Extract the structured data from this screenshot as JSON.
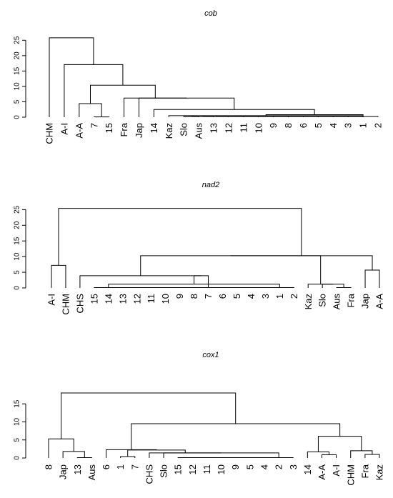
{
  "chart_data": [
    {
      "type": "dendrogram",
      "title": "cob",
      "ylim": [
        0,
        26
      ],
      "yticks": [
        0,
        5,
        10,
        15,
        20,
        25
      ],
      "leaves": [
        "CHM",
        "A-I",
        "A-A",
        "7",
        "15",
        "Fra",
        "Jap",
        "14",
        "Kaz",
        "Slo",
        "Aus",
        "13",
        "12",
        "11",
        "10",
        "9",
        "8",
        "6",
        "5",
        "4",
        "3",
        "1",
        "2"
      ],
      "merges": [
        {
          "id": "c1",
          "height": 0.2,
          "left": "Slo",
          "right": "Aus"
        },
        {
          "id": "c2",
          "height": 0.2,
          "left": "c1",
          "right": "13"
        },
        {
          "id": "c3",
          "height": 0.2,
          "left": "c2",
          "right": "12"
        },
        {
          "id": "c4",
          "height": 0.2,
          "left": "c3",
          "right": "11"
        },
        {
          "id": "c5",
          "height": 0.2,
          "left": "c4",
          "right": "10"
        },
        {
          "id": "c6",
          "height": 0.2,
          "left": "c5",
          "right": "9"
        },
        {
          "id": "c7",
          "height": 0.2,
          "left": "c6",
          "right": "8"
        },
        {
          "id": "c8",
          "height": 0.2,
          "left": "c7",
          "right": "6"
        },
        {
          "id": "c9",
          "height": 0.2,
          "left": "c8",
          "right": "5"
        },
        {
          "id": "c10",
          "height": 0.2,
          "left": "c9",
          "right": "4"
        },
        {
          "id": "c11",
          "height": 0.2,
          "left": "c10",
          "right": "3"
        },
        {
          "id": "c12",
          "height": 0.2,
          "left": "c11",
          "right": "1"
        },
        {
          "id": "c13",
          "height": 0.2,
          "left": "c12",
          "right": "2"
        },
        {
          "id": "c14",
          "height": 0.5,
          "left": "Kaz",
          "right": "c13"
        },
        {
          "id": "c15",
          "height": 0.8,
          "left": "c14",
          "right": "c13"
        },
        {
          "id": "c16",
          "height": 2.5,
          "left": "14",
          "right": "c15"
        },
        {
          "id": "c17",
          "height": 6.2,
          "left": "Jap",
          "right": "c16"
        },
        {
          "id": "c18",
          "height": 6.2,
          "left": "Fra",
          "right": "c17"
        },
        {
          "id": "c19",
          "height": 0.1,
          "left": "7",
          "right": "15"
        },
        {
          "id": "c20",
          "height": 4.4,
          "left": "A-A",
          "right": "c19"
        },
        {
          "id": "c21",
          "height": 10.4,
          "left": "c20",
          "right": "c18"
        },
        {
          "id": "c22",
          "height": 17.1,
          "left": "A-I",
          "right": "c21"
        },
        {
          "id": "c23",
          "height": 25.8,
          "left": "CHM",
          "right": "c22"
        }
      ]
    },
    {
      "type": "dendrogram",
      "title": "nad2",
      "ylim": [
        0,
        26
      ],
      "yticks": [
        0,
        5,
        10,
        15,
        20,
        25
      ],
      "leaves": [
        "A-I",
        "CHM",
        "CHS",
        "15",
        "14",
        "13",
        "12",
        "11",
        "10",
        "9",
        "8",
        "7",
        "6",
        "5",
        "4",
        "3",
        "1",
        "2",
        "Kaz",
        "Slo",
        "Aus",
        "Fra",
        "Jap",
        "A-A"
      ],
      "merges": [
        {
          "id": "n1",
          "height": 0.1,
          "left": "15",
          "right": "14"
        },
        {
          "id": "n2",
          "height": 0.1,
          "left": "n1",
          "right": "13"
        },
        {
          "id": "n3",
          "height": 0.1,
          "left": "n2",
          "right": "12"
        },
        {
          "id": "n4",
          "height": 0.1,
          "left": "n3",
          "right": "11"
        },
        {
          "id": "n5",
          "height": 0.1,
          "left": "n4",
          "right": "10"
        },
        {
          "id": "n6",
          "height": 0.1,
          "left": "n5",
          "right": "9"
        },
        {
          "id": "n7",
          "height": 0.1,
          "left": "n6",
          "right": "8"
        },
        {
          "id": "n8",
          "height": 0.1,
          "left": "n7",
          "right": "7"
        },
        {
          "id": "n9",
          "height": 0.1,
          "left": "n8",
          "right": "6"
        },
        {
          "id": "n10",
          "height": 0.1,
          "left": "n9",
          "right": "5"
        },
        {
          "id": "n11",
          "height": 0.1,
          "left": "n10",
          "right": "4"
        },
        {
          "id": "n12",
          "height": 0.1,
          "left": "n11",
          "right": "3"
        },
        {
          "id": "n13",
          "height": 0.1,
          "left": "n12",
          "right": "1"
        },
        {
          "id": "n14",
          "height": 0.1,
          "left": "n13",
          "right": "2"
        },
        {
          "id": "n15",
          "height": 1.2,
          "left": "14",
          "right": "n14"
        },
        {
          "id": "n16",
          "height": 3.9,
          "left": "n15",
          "right": "7"
        },
        {
          "id": "n17",
          "height": 3.9,
          "left": "CHS",
          "right": "n16"
        },
        {
          "id": "n18",
          "height": 0.1,
          "left": "Aus",
          "right": "Fra"
        },
        {
          "id": "n19",
          "height": 1.2,
          "left": "Slo",
          "right": "n18"
        },
        {
          "id": "n20",
          "height": 1.2,
          "left": "Kaz",
          "right": "n19"
        },
        {
          "id": "n21",
          "height": 10.3,
          "left": "n17",
          "right": "n20"
        },
        {
          "id": "n22",
          "height": 5.7,
          "left": "Jap",
          "right": "A-A"
        },
        {
          "id": "n23",
          "height": 10.3,
          "left": "n21",
          "right": "n22"
        },
        {
          "id": "n24",
          "height": 7.2,
          "left": "A-I",
          "right": "CHM"
        },
        {
          "id": "n25",
          "height": 25.4,
          "left": "n24",
          "right": "n23"
        }
      ]
    },
    {
      "type": "dendrogram",
      "title": "cox1",
      "ylim": [
        0,
        19
      ],
      "yticks": [
        0,
        5,
        10,
        15
      ],
      "leaves": [
        "8",
        "Jap",
        "13",
        "Aus",
        "6",
        "1",
        "7",
        "CHS",
        "Slo",
        "15",
        "12",
        "11",
        "10",
        "9",
        "5",
        "4",
        "2",
        "3",
        "14",
        "A-A",
        "A-I",
        "CHM",
        "Fra",
        "Kaz"
      ],
      "merges": [
        {
          "id": "x1",
          "height": 0.1,
          "left": "15",
          "right": "12"
        },
        {
          "id": "x2",
          "height": 0.1,
          "left": "x1",
          "right": "11"
        },
        {
          "id": "x3",
          "height": 0.1,
          "left": "x2",
          "right": "10"
        },
        {
          "id": "x4",
          "height": 0.1,
          "left": "x3",
          "right": "9"
        },
        {
          "id": "x5",
          "height": 0.1,
          "left": "x4",
          "right": "5"
        },
        {
          "id": "x6",
          "height": 0.1,
          "left": "x5",
          "right": "4"
        },
        {
          "id": "x7",
          "height": 0.1,
          "left": "x6",
          "right": "2"
        },
        {
          "id": "x8",
          "height": 0.1,
          "left": "x7",
          "right": "3"
        },
        {
          "id": "x9",
          "height": 1.4,
          "left": "Slo",
          "right": "x8"
        },
        {
          "id": "x10",
          "height": 1.4,
          "left": "CHS",
          "right": "x9"
        },
        {
          "id": "x11",
          "height": 0.4,
          "left": "1",
          "right": "7"
        },
        {
          "id": "x12",
          "height": 2.2,
          "left": "x11",
          "right": "x10"
        },
        {
          "id": "x13",
          "height": 2.3,
          "left": "6",
          "right": "x12"
        },
        {
          "id": "x14",
          "height": 0.1,
          "left": "13",
          "right": "Aus"
        },
        {
          "id": "x15",
          "height": 1.8,
          "left": "Jap",
          "right": "x14"
        },
        {
          "id": "x16",
          "height": 5.3,
          "left": "8",
          "right": "x15"
        },
        {
          "id": "x17",
          "height": 0.9,
          "left": "A-I",
          "right": "A-A"
        },
        {
          "id": "x18",
          "height": 1.7,
          "left": "14",
          "right": "x17"
        },
        {
          "id": "x19",
          "height": 1.0,
          "left": "Fra",
          "right": "Kaz"
        },
        {
          "id": "x20",
          "height": 2.0,
          "left": "CHM",
          "right": "x19"
        },
        {
          "id": "x21",
          "height": 6.0,
          "left": "x18",
          "right": "x20"
        },
        {
          "id": "x22",
          "height": 9.5,
          "left": "x13",
          "right": "x21"
        },
        {
          "id": "x23",
          "height": 18.0,
          "left": "x16",
          "right": "x22"
        }
      ]
    }
  ]
}
